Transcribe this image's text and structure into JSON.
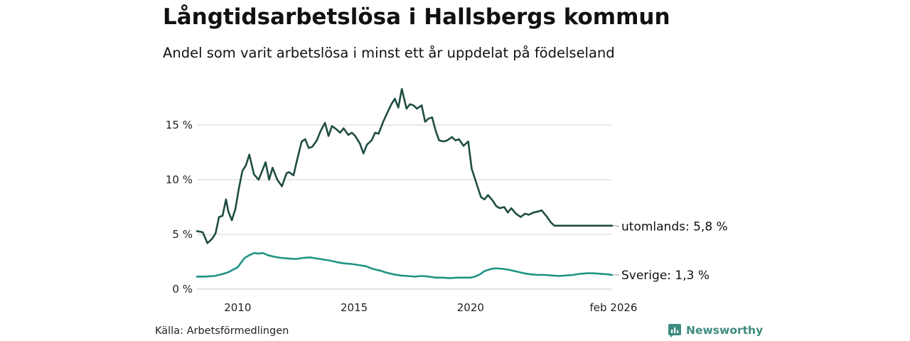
{
  "header": {
    "title": "Långtidsarbetslösa i Hallsbergs kommun",
    "subtitle": "Andel som varit arbetslösa i minst ett år uppdelat på födelseland"
  },
  "footer": {
    "source": "Källa: Arbetsförmedlingen",
    "brand": "Newsworthy"
  },
  "chart_data": {
    "type": "line",
    "title": "Långtidsarbetslösa i Hallsbergs kommun",
    "subtitle": "Andel som varit arbetslösa i minst ett år uppdelat på födelseland",
    "xlabel": "",
    "ylabel": "",
    "x_range": [
      2008.25,
      2026.08
    ],
    "ylim": [
      0,
      20
    ],
    "y_ticks": [
      0,
      5,
      10,
      15
    ],
    "y_tick_labels": [
      "0 %",
      "5 %",
      "10 %",
      "15 %"
    ],
    "x_ticks": [
      2010,
      2015,
      2020,
      2026.08
    ],
    "x_tick_labels": [
      "2010",
      "2015",
      "2020",
      "feb 2026"
    ],
    "grid": "horizontal",
    "series": [
      {
        "name": "utomlands",
        "end_label": "utomlands: 5,8 %",
        "color": "#1f4d43",
        "x": [
          2008.25,
          2008.5,
          2008.7,
          2008.9,
          2009.05,
          2009.2,
          2009.35,
          2009.5,
          2009.6,
          2009.75,
          2009.9,
          2010.05,
          2010.2,
          2010.35,
          2010.5,
          2010.7,
          2010.9,
          2011.05,
          2011.2,
          2011.35,
          2011.5,
          2011.7,
          2011.9,
          2012.1,
          2012.2,
          2012.4,
          2012.55,
          2012.75,
          2012.9,
          2013.05,
          2013.2,
          2013.4,
          2013.55,
          2013.75,
          2013.9,
          2014.05,
          2014.25,
          2014.4,
          2014.55,
          2014.75,
          2014.9,
          2015.05,
          2015.25,
          2015.4,
          2015.55,
          2015.75,
          2015.9,
          2016.05,
          2016.25,
          2016.4,
          2016.6,
          2016.75,
          2016.9,
          2017.05,
          2017.25,
          2017.4,
          2017.55,
          2017.7,
          2017.9,
          2018.05,
          2018.2,
          2018.35,
          2018.5,
          2018.65,
          2018.85,
          2019.0,
          2019.2,
          2019.35,
          2019.5,
          2019.7,
          2019.9,
          2020.05,
          2020.25,
          2020.45,
          2020.6,
          2020.75,
          2020.95,
          2021.1,
          2021.25,
          2021.45,
          2021.6,
          2021.75,
          2021.95,
          2022.15,
          2022.35,
          2022.5,
          2022.7,
          2022.9,
          2023.05,
          2023.25,
          2023.45,
          2023.6,
          2023.8,
          2024.0,
          2024.2,
          2024.35,
          2024.55,
          2024.75,
          2024.95,
          2025.1,
          2025.3,
          2025.5,
          2025.65,
          2025.8,
          2025.95,
          2026.08
        ],
        "values": [
          5.3,
          5.2,
          4.2,
          4.6,
          5.1,
          6.6,
          6.7,
          8.2,
          7.1,
          6.3,
          7.3,
          9.2,
          10.8,
          11.3,
          12.3,
          10.5,
          10.0,
          10.8,
          11.6,
          10.0,
          11.1,
          10.0,
          9.4,
          10.6,
          10.7,
          10.4,
          11.8,
          13.5,
          13.7,
          12.9,
          13.0,
          13.6,
          14.4,
          15.2,
          14.0,
          14.9,
          14.6,
          14.3,
          14.7,
          14.1,
          14.3,
          14.0,
          13.3,
          12.4,
          13.2,
          13.6,
          14.3,
          14.2,
          15.3,
          16.0,
          16.9,
          17.4,
          16.6,
          18.3,
          16.5,
          16.9,
          16.8,
          16.5,
          16.8,
          15.3,
          15.6,
          15.7,
          14.5,
          13.6,
          13.5,
          13.6,
          13.9,
          13.6,
          13.7,
          13.1,
          13.5,
          11.0,
          9.7,
          8.4,
          8.2,
          8.6,
          8.1,
          7.6,
          7.4,
          7.5,
          7.0,
          7.4,
          6.9,
          6.6,
          6.9,
          6.8,
          7.0,
          7.1,
          7.2,
          6.7,
          6.1,
          5.8,
          5.8,
          5.8,
          5.8,
          5.8,
          5.8,
          5.8,
          5.8,
          5.8,
          5.8,
          5.8,
          5.8,
          5.8,
          5.8,
          5.8
        ]
      },
      {
        "name": "Sverige",
        "end_label": "Sverige: 1,3 %",
        "color": "#1f9485",
        "x": [
          2008.25,
          2008.6,
          2009.0,
          2009.3,
          2009.6,
          2010.0,
          2010.3,
          2010.5,
          2010.7,
          2010.9,
          2011.1,
          2011.3,
          2011.6,
          2011.9,
          2012.2,
          2012.5,
          2012.8,
          2013.1,
          2013.4,
          2013.7,
          2014.0,
          2014.3,
          2014.6,
          2014.9,
          2015.2,
          2015.5,
          2015.8,
          2016.1,
          2016.4,
          2016.7,
          2017.0,
          2017.3,
          2017.6,
          2017.9,
          2018.2,
          2018.5,
          2018.8,
          2019.1,
          2019.4,
          2019.7,
          2020.0,
          2020.2,
          2020.4,
          2020.6,
          2020.9,
          2021.1,
          2021.4,
          2021.7,
          2022.0,
          2022.3,
          2022.6,
          2022.9,
          2023.2,
          2023.5,
          2023.8,
          2024.1,
          2024.4,
          2024.7,
          2025.0,
          2025.3,
          2025.6,
          2025.9,
          2026.08
        ],
        "values": [
          1.15,
          1.15,
          1.2,
          1.35,
          1.55,
          2.0,
          2.85,
          3.1,
          3.3,
          3.25,
          3.3,
          3.1,
          2.95,
          2.85,
          2.8,
          2.75,
          2.85,
          2.9,
          2.8,
          2.7,
          2.6,
          2.45,
          2.35,
          2.3,
          2.2,
          2.1,
          1.85,
          1.7,
          1.5,
          1.35,
          1.25,
          1.2,
          1.15,
          1.2,
          1.15,
          1.05,
          1.05,
          1.0,
          1.05,
          1.05,
          1.05,
          1.15,
          1.35,
          1.65,
          1.85,
          1.9,
          1.85,
          1.75,
          1.6,
          1.45,
          1.35,
          1.3,
          1.3,
          1.25,
          1.2,
          1.25,
          1.3,
          1.4,
          1.45,
          1.45,
          1.4,
          1.35,
          1.3
        ]
      }
    ]
  }
}
